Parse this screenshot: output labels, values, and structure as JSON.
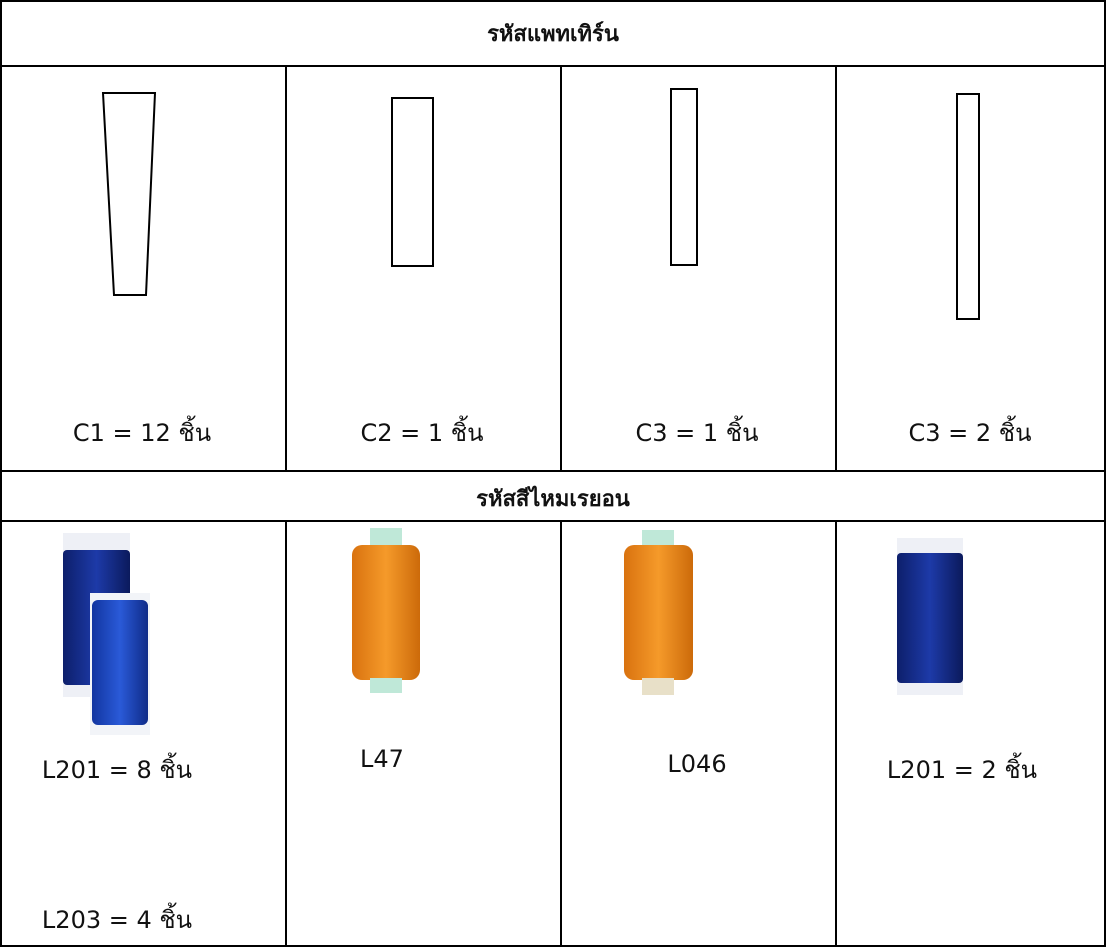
{
  "header": {
    "title": "รหัสแพทเทิร์น"
  },
  "patterns": [
    {
      "label": "C1 = 12 ชิ้น"
    },
    {
      "label": "C2 = 1 ชิ้น"
    },
    {
      "label": "C3 = 1 ชิ้น"
    },
    {
      "label": "C3 = 2 ชิ้น"
    }
  ],
  "thread_header": {
    "title": "รหัสสีไหมเรยอน"
  },
  "threads": [
    {
      "items": [
        {
          "label": "L201 = 8 ชิ้น"
        },
        {
          "label": "L203 = 4 ชิ้น"
        }
      ]
    },
    {
      "items": [
        {
          "label": "L47"
        }
      ]
    },
    {
      "items": [
        {
          "label": "L046"
        }
      ]
    },
    {
      "items": [
        {
          "label": "L201 = 2 ชิ้น"
        }
      ]
    }
  ]
}
